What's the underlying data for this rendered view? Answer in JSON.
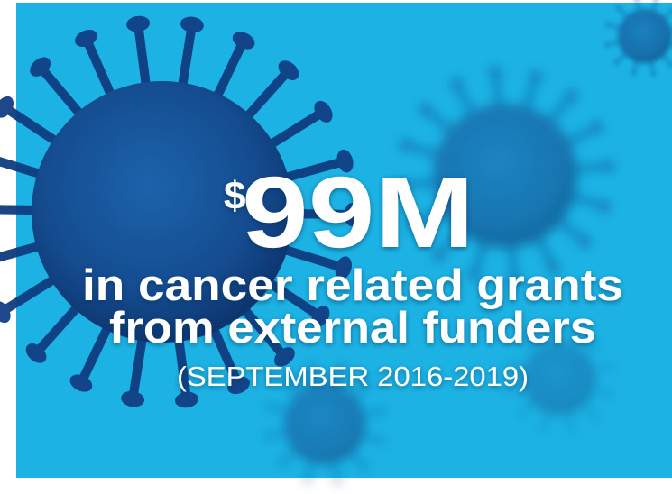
{
  "headline": {
    "currency": "$",
    "amount": "99M"
  },
  "lines": [
    "in cancer related grants",
    "from external funders"
  ],
  "period": "(SEPTEMBER 2016-2019)"
}
